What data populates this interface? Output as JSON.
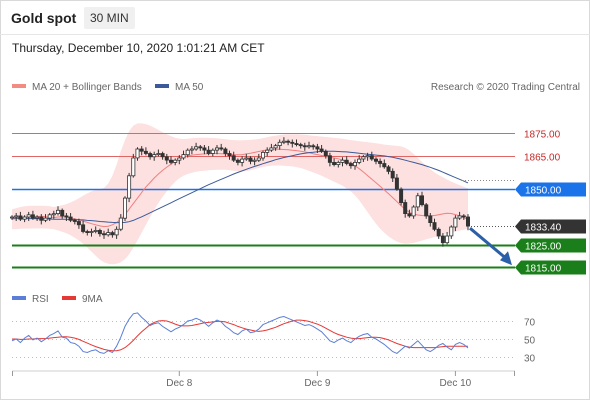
{
  "header": {
    "symbol": "Gold spot",
    "timeframe": "30 MIN"
  },
  "datetime": "Thursday, December 10, 2020 1:01:21 AM CET",
  "legend": {
    "bb_label": "MA 20 + Bollinger Bands",
    "ma50_label": "MA 50",
    "credit": "Research © 2020 Trading Central"
  },
  "rsi_legend": {
    "rsi_label": "RSI",
    "ma9_label": "9MA"
  },
  "colors": {
    "bollinger_fill": "#fde0e0",
    "ma20": "#f08080",
    "ma50": "#3c5a99",
    "candle": "#333333",
    "red_level": "#e06666",
    "blue_level": "#1a73e8",
    "green_level": "#1a7f1a",
    "arrow": "#2b5fa8",
    "rsi": "#5b7fd6",
    "rsi_ma": "#e53935"
  },
  "chart_data": [
    {
      "type": "candlestick",
      "x_ticks": [
        "Dec 8",
        "Dec 9",
        "Dec 10"
      ],
      "ylim": [
        1807,
        1890
      ],
      "current_price": "1833.40",
      "levels": [
        {
          "value": 1875,
          "label": "1875.00",
          "style": "red-line"
        },
        {
          "value": 1865,
          "label": "1865.00",
          "style": "red-line"
        },
        {
          "value": 1850,
          "label": "1850.00",
          "style": "blue-box"
        },
        {
          "value": 1825,
          "label": "1825.00",
          "style": "green-box"
        },
        {
          "value": 1815,
          "label": "1815.00",
          "style": "green-box"
        }
      ],
      "target": 1815,
      "closes": [
        1837.5,
        1838,
        1836.5,
        1837.5,
        1838.5,
        1837,
        1837.5,
        1836,
        1837,
        1838.5,
        1839,
        1840.5,
        1838,
        1837.5,
        1836,
        1835.5,
        1834,
        1831,
        1830.5,
        1831,
        1831.5,
        1830,
        1829.5,
        1830.5,
        1829.5,
        1832,
        1837,
        1846,
        1856,
        1864,
        1868,
        1867,
        1866,
        1864.5,
        1865.5,
        1866,
        1864.5,
        1863,
        1862,
        1863,
        1864,
        1865.5,
        1867.5,
        1868,
        1869,
        1868.5,
        1867.5,
        1866,
        1867.5,
        1868.5,
        1868,
        1866,
        1865,
        1863,
        1862,
        1863.5,
        1864,
        1862.5,
        1863,
        1864,
        1866.5,
        1867.5,
        1868.5,
        1869.5,
        1871,
        1871.5,
        1871,
        1870.5,
        1870,
        1869.5,
        1869,
        1869.5,
        1869,
        1868,
        1867,
        1865,
        1862,
        1861,
        1862,
        1863,
        1861.5,
        1860.5,
        1862,
        1863.5,
        1864.5,
        1865,
        1863.5,
        1862.5,
        1861.5,
        1860,
        1858,
        1855,
        1850,
        1844,
        1839,
        1838,
        1842,
        1847,
        1843,
        1838,
        1835,
        1832,
        1829,
        1826,
        1829,
        1833,
        1837,
        1838,
        1837.5,
        1833.4
      ],
      "ma20": [
        1836.5,
        1836.8,
        1837,
        1837.2,
        1837.4,
        1837.6,
        1837.7,
        1837.8,
        1837.6,
        1837.5,
        1837.3,
        1837.5,
        1837.6,
        1837.4,
        1837.1,
        1836.7,
        1836.2,
        1835.7,
        1835.1,
        1834.5,
        1834,
        1833.5,
        1833.2,
        1833.4,
        1834,
        1835,
        1836.5,
        1838.5,
        1841,
        1843.5,
        1846,
        1848.5,
        1851,
        1853,
        1855,
        1856.8,
        1858.4,
        1859.9,
        1861.2,
        1862.4,
        1863.5,
        1864.3,
        1864.9,
        1865.3,
        1865.5,
        1865.7,
        1865.8,
        1865.9,
        1866,
        1866,
        1865.9,
        1865.8,
        1865.6,
        1865.4,
        1865.4,
        1865.5,
        1865.8,
        1866.1,
        1866.5,
        1866.9,
        1867.3,
        1867.6,
        1867.8,
        1867.9,
        1867.9,
        1867.8,
        1867.7,
        1867.5,
        1867.3,
        1867,
        1866.7,
        1866.3,
        1865.9,
        1865.5,
        1865.1,
        1864.7,
        1864.3,
        1864,
        1863.6,
        1863.1,
        1862.5,
        1861.6,
        1860.5,
        1859.2,
        1857.7,
        1856.1,
        1854.5,
        1852.9,
        1851.3,
        1849.6,
        1848,
        1846.2,
        1844.4,
        1842.6,
        1841,
        1839.6,
        1838.8,
        1838.4,
        1838.2,
        1838,
        1838,
        1838.2,
        1838.5,
        1838.9,
        1839.2,
        1839.1,
        1838.6,
        1838,
        1837.2,
        1836.3
      ],
      "bb_upper": [
        1841,
        1841.5,
        1842,
        1842.3,
        1842.5,
        1842.6,
        1842.6,
        1842.6,
        1842.5,
        1842.3,
        1842,
        1842.3,
        1842.8,
        1843.3,
        1844,
        1844.9,
        1845.9,
        1847,
        1848.1,
        1849,
        1849.6,
        1850,
        1850.5,
        1852.5,
        1856,
        1861,
        1867,
        1872,
        1876,
        1878.5,
        1879.5,
        1879.5,
        1879.2,
        1878.5,
        1877.6,
        1876.6,
        1875.5,
        1874.6,
        1873.8,
        1873.1,
        1872.7,
        1872.5,
        1872.6,
        1872.8,
        1873,
        1873.1,
        1873.1,
        1873,
        1872.9,
        1872.8,
        1872.6,
        1872.4,
        1872.2,
        1872,
        1871.9,
        1871.9,
        1872,
        1872.1,
        1872.3,
        1872.5,
        1872.9,
        1873.3,
        1873.7,
        1874,
        1874.3,
        1874.5,
        1874.6,
        1874.6,
        1874.6,
        1874.5,
        1874.4,
        1874.2,
        1874,
        1873.8,
        1873.6,
        1873.4,
        1873.2,
        1873,
        1872.8,
        1872.6,
        1872.3,
        1872,
        1871.8,
        1871.5,
        1871.3,
        1871.1,
        1870.8,
        1870.6,
        1870.3,
        1870,
        1869.8,
        1869.6,
        1869.4,
        1869.2,
        1868.6,
        1867.4,
        1865.8,
        1864,
        1862.2,
        1860.5,
        1858.9,
        1857.5,
        1856.3,
        1855.3,
        1854.3,
        1853.4,
        1852.6,
        1851.8,
        1851,
        1850.4
      ],
      "bb_lower": [
        1832,
        1832.1,
        1832.2,
        1832.3,
        1832.3,
        1832.4,
        1832.4,
        1832.4,
        1832.3,
        1832.2,
        1832,
        1831.5,
        1830.9,
        1830.2,
        1829.3,
        1828.2,
        1827,
        1825.5,
        1823.8,
        1822,
        1820.1,
        1818.4,
        1817.2,
        1816.5,
        1816.3,
        1816.5,
        1817.2,
        1818.6,
        1820.8,
        1823.7,
        1827,
        1830.5,
        1834,
        1837.5,
        1840.8,
        1843.8,
        1846.6,
        1849.1,
        1851.3,
        1853.3,
        1854.9,
        1856,
        1856.8,
        1857.4,
        1857.8,
        1858.1,
        1858.3,
        1858.5,
        1858.6,
        1858.7,
        1858.7,
        1858.7,
        1858.5,
        1858.3,
        1858.1,
        1858,
        1858.1,
        1858.5,
        1859,
        1859.5,
        1860,
        1860.3,
        1860.5,
        1860.6,
        1860.6,
        1860.5,
        1860.4,
        1860.2,
        1859.9,
        1859.5,
        1858.9,
        1858.2,
        1857.5,
        1856.8,
        1856,
        1855.1,
        1854.2,
        1853.3,
        1852.5,
        1851.5,
        1850.3,
        1849,
        1847.2,
        1845,
        1842.4,
        1839.7,
        1837,
        1834.5,
        1832.3,
        1830.4,
        1828.8,
        1827.5,
        1826.5,
        1825.8,
        1825.5,
        1825.6,
        1825.9,
        1826.4,
        1826.9,
        1827.5,
        1828,
        1828.5,
        1829,
        1829.5,
        1830,
        1830.5,
        1831,
        1831.4,
        1831.8,
        1832.2
      ],
      "ma50": [
        1837,
        1837,
        1836.9,
        1836.9,
        1836.8,
        1836.8,
        1836.7,
        1836.7,
        1836.6,
        1836.6,
        1836.5,
        1836.5,
        1836.5,
        1836.5,
        1836.4,
        1836.4,
        1836.3,
        1836.2,
        1836,
        1835.9,
        1835.7,
        1835.5,
        1835.4,
        1835.2,
        1835.1,
        1835,
        1835,
        1835.1,
        1835.4,
        1836,
        1836.8,
        1837.6,
        1838.5,
        1839.4,
        1840.3,
        1841.2,
        1842.1,
        1843,
        1843.9,
        1844.8,
        1845.7,
        1846.6,
        1847.5,
        1848.4,
        1849.3,
        1850.2,
        1851.1,
        1852,
        1852.8,
        1853.6,
        1854.4,
        1855.2,
        1856,
        1856.8,
        1857.5,
        1858.2,
        1858.9,
        1859.6,
        1860.2,
        1860.8,
        1861.4,
        1862,
        1862.6,
        1863.2,
        1863.7,
        1864.2,
        1864.6,
        1865,
        1865.4,
        1865.8,
        1866.1,
        1866.4,
        1866.6,
        1866.8,
        1866.9,
        1867,
        1867,
        1867,
        1866.9,
        1866.8,
        1866.7,
        1866.5,
        1866.3,
        1866.1,
        1865.9,
        1865.7,
        1865.5,
        1865.3,
        1865.1,
        1864.9,
        1864.6,
        1864.3,
        1863.9,
        1863.5,
        1863,
        1862.5,
        1862,
        1861.5,
        1861,
        1860.4,
        1859.8,
        1859.1,
        1858.4,
        1857.6,
        1856.8,
        1856,
        1855.2,
        1854.4,
        1853.6,
        1852.8
      ]
    },
    {
      "type": "line",
      "yticks": [
        70,
        50,
        30
      ],
      "ylim": [
        20,
        80
      ],
      "series": [
        {
          "name": "RSI",
          "values": [
            48,
            50,
            46,
            51,
            54,
            49,
            51,
            47,
            50,
            54,
            56,
            59,
            52,
            51,
            46,
            45,
            42,
            36,
            35,
            37,
            38,
            35,
            34,
            37,
            35,
            42,
            52,
            64,
            72,
            78,
            79,
            74,
            70,
            65,
            67,
            68,
            64,
            61,
            58,
            61,
            63,
            66,
            70,
            71,
            73,
            71,
            68,
            64,
            68,
            71,
            69,
            64,
            61,
            57,
            55,
            59,
            61,
            57,
            58,
            61,
            66,
            68,
            70,
            72,
            74,
            75,
            73,
            71,
            69,
            67,
            65,
            66,
            64,
            61,
            58,
            53,
            48,
            46,
            49,
            51,
            48,
            46,
            50,
            53,
            55,
            56,
            52,
            50,
            47,
            44,
            40,
            36,
            34,
            38,
            42,
            40,
            44,
            48,
            43,
            38,
            36,
            39,
            43,
            45,
            41,
            38,
            44,
            46,
            44,
            40
          ]
        },
        {
          "name": "9MA",
          "values": [
            50,
            50,
            49.5,
            49.5,
            50,
            50,
            50.5,
            50.5,
            50.5,
            51,
            51.5,
            52,
            52.5,
            52.5,
            52,
            51,
            49.5,
            47.5,
            45.5,
            43.5,
            41.5,
            40,
            38.5,
            37.5,
            37,
            37,
            38,
            40.5,
            44,
            48.5,
            53.5,
            58,
            62,
            66,
            68.5,
            70,
            70.5,
            70,
            68.5,
            66.5,
            65,
            64.5,
            64.5,
            65,
            66,
            67,
            68,
            68.5,
            69,
            69.5,
            69.5,
            69,
            67.5,
            66,
            64,
            62.5,
            61,
            60,
            59,
            58.5,
            59,
            60,
            61.5,
            63,
            65,
            67,
            68.5,
            70,
            71,
            71,
            70.5,
            69.5,
            68,
            66.5,
            64.5,
            62,
            59.5,
            57,
            55,
            53.5,
            52,
            51,
            50.5,
            50.5,
            51,
            51.5,
            52,
            52,
            51.5,
            50.5,
            49,
            47,
            45,
            43.5,
            42,
            41,
            40.5,
            40.5,
            40.5,
            40.5,
            40.5,
            40.5,
            41,
            41.5,
            42,
            42,
            42,
            42,
            42,
            42
          ]
        }
      ]
    }
  ]
}
